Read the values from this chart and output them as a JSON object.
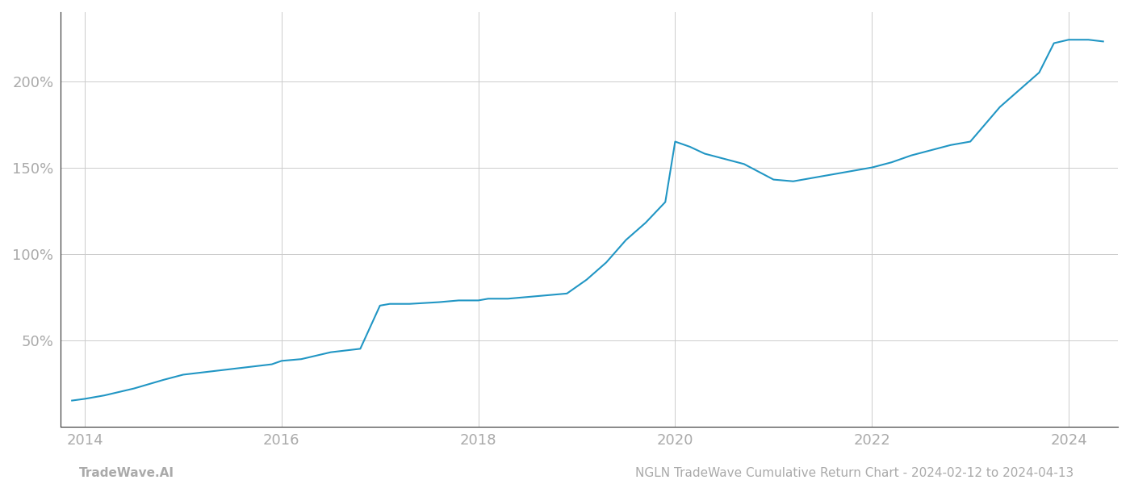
{
  "x_years": [
    2013.87,
    2014.0,
    2014.2,
    2014.5,
    2014.8,
    2015.0,
    2015.3,
    2015.6,
    2015.9,
    2016.0,
    2016.2,
    2016.5,
    2016.8,
    2017.0,
    2017.1,
    2017.3,
    2017.6,
    2017.8,
    2018.0,
    2018.1,
    2018.3,
    2018.5,
    2018.7,
    2018.9,
    2019.1,
    2019.3,
    2019.5,
    2019.7,
    2019.9,
    2020.0,
    2020.15,
    2020.3,
    2020.5,
    2020.7,
    2021.0,
    2021.2,
    2021.5,
    2021.8,
    2022.0,
    2022.2,
    2022.4,
    2022.6,
    2022.8,
    2023.0,
    2023.15,
    2023.3,
    2023.5,
    2023.7,
    2023.85,
    2024.0,
    2024.2,
    2024.35
  ],
  "y_values": [
    15,
    16,
    18,
    22,
    27,
    30,
    32,
    34,
    36,
    38,
    39,
    43,
    45,
    70,
    71,
    71,
    72,
    73,
    73,
    74,
    74,
    75,
    76,
    77,
    85,
    95,
    108,
    118,
    130,
    165,
    162,
    158,
    155,
    152,
    143,
    142,
    145,
    148,
    150,
    153,
    157,
    160,
    163,
    165,
    175,
    185,
    195,
    205,
    222,
    224,
    224,
    223
  ],
  "line_color": "#2196c4",
  "line_width": 1.5,
  "xlim": [
    2013.75,
    2024.5
  ],
  "ylim": [
    0,
    240
  ],
  "yticks": [
    50,
    100,
    150,
    200
  ],
  "ytick_labels": [
    "50%",
    "100%",
    "150%",
    "200%"
  ],
  "xticks": [
    2014,
    2016,
    2018,
    2020,
    2022,
    2024
  ],
  "grid_color": "#cccccc",
  "background_color": "#ffffff",
  "footer_left": "TradeWave.AI",
  "footer_right": "NGLN TradeWave Cumulative Return Chart - 2024-02-12 to 2024-04-13",
  "footer_color": "#aaaaaa",
  "footer_fontsize": 11,
  "tick_color": "#aaaaaa",
  "tick_fontsize": 13
}
